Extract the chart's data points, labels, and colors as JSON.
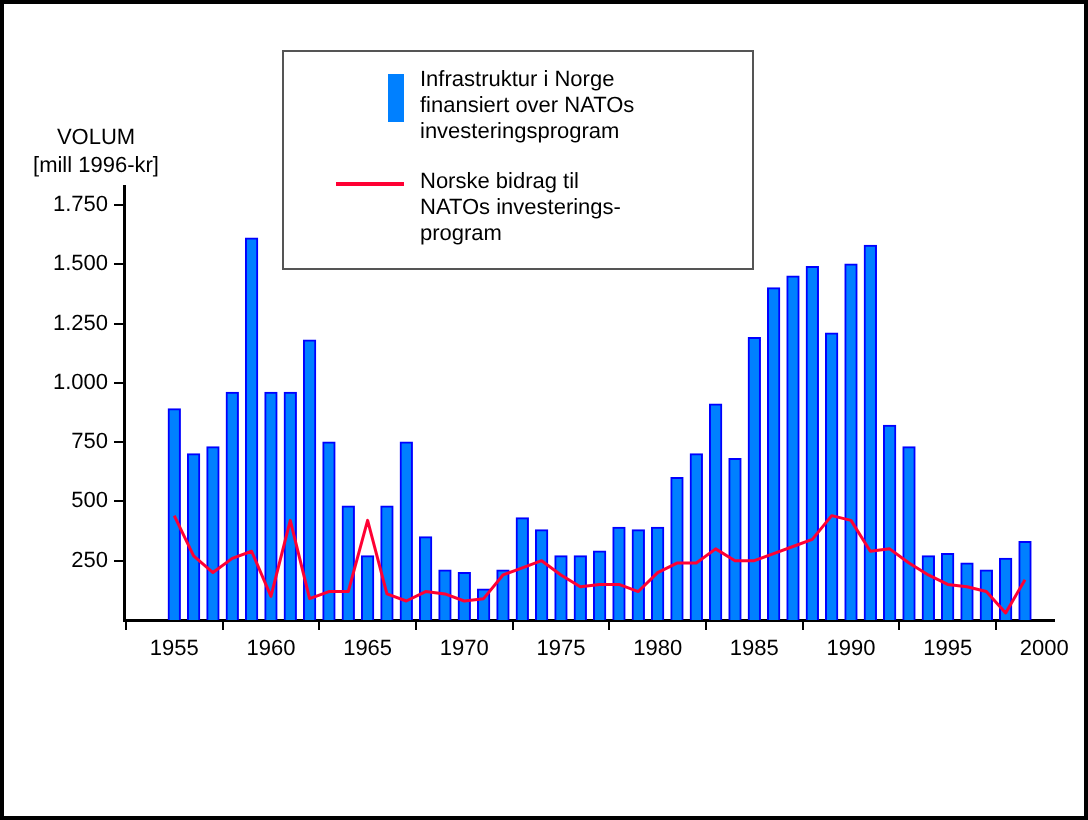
{
  "chart_data": {
    "type": "bar",
    "ylabel": "VOLUM\n[mill 1996-kr]",
    "x": [
      1955,
      1956,
      1957,
      1958,
      1959,
      1960,
      1961,
      1962,
      1963,
      1964,
      1965,
      1966,
      1967,
      1968,
      1969,
      1970,
      1971,
      1972,
      1973,
      1974,
      1975,
      1976,
      1977,
      1978,
      1979,
      1980,
      1981,
      1982,
      1983,
      1984,
      1985,
      1986,
      1987,
      1988,
      1989,
      1990,
      1991,
      1992,
      1993,
      1994,
      1995,
      1996,
      1997,
      1998,
      1999
    ],
    "series": [
      {
        "name": "Infrastruktur i Norge finansiert over NATOs investeringsprogram",
        "color": "#0080ff",
        "values": [
          890,
          700,
          730,
          960,
          1610,
          960,
          960,
          1180,
          750,
          480,
          270,
          480,
          750,
          350,
          210,
          200,
          130,
          210,
          430,
          380,
          270,
          270,
          290,
          390,
          380,
          390,
          600,
          700,
          910,
          680,
          1190,
          1400,
          1450,
          1490,
          1210,
          1500,
          1580,
          820,
          730,
          270,
          280,
          240,
          210,
          260,
          330
        ]
      },
      {
        "name": "Norske bidrag til NATOs investerings-program",
        "type": "line",
        "color": "#ff0033",
        "values": [
          440,
          270,
          200,
          260,
          290,
          100,
          420,
          90,
          120,
          120,
          420,
          110,
          80,
          120,
          110,
          80,
          90,
          190,
          220,
          250,
          190,
          140,
          150,
          150,
          120,
          200,
          240,
          240,
          300,
          250,
          250,
          280,
          310,
          340,
          440,
          420,
          290,
          300,
          240,
          190,
          150,
          140,
          120,
          30,
          170
        ]
      }
    ],
    "xlim": [
      1952.4,
      2000.5
    ],
    "xticks": [
      1955,
      1960,
      1965,
      1970,
      1975,
      1980,
      1985,
      1990,
      1995,
      2000
    ],
    "ylim": [
      0,
      1830
    ],
    "yticks": [
      250,
      500,
      750,
      {
        "value": 1000,
        "label": "1.000"
      },
      {
        "value": 1250,
        "label": "1.250"
      },
      {
        "value": 1500,
        "label": "1.500"
      },
      {
        "value": 1750,
        "label": "1.750"
      }
    ],
    "grid": false,
    "legend": "top",
    "marker": "none",
    "line_style": "solid"
  }
}
